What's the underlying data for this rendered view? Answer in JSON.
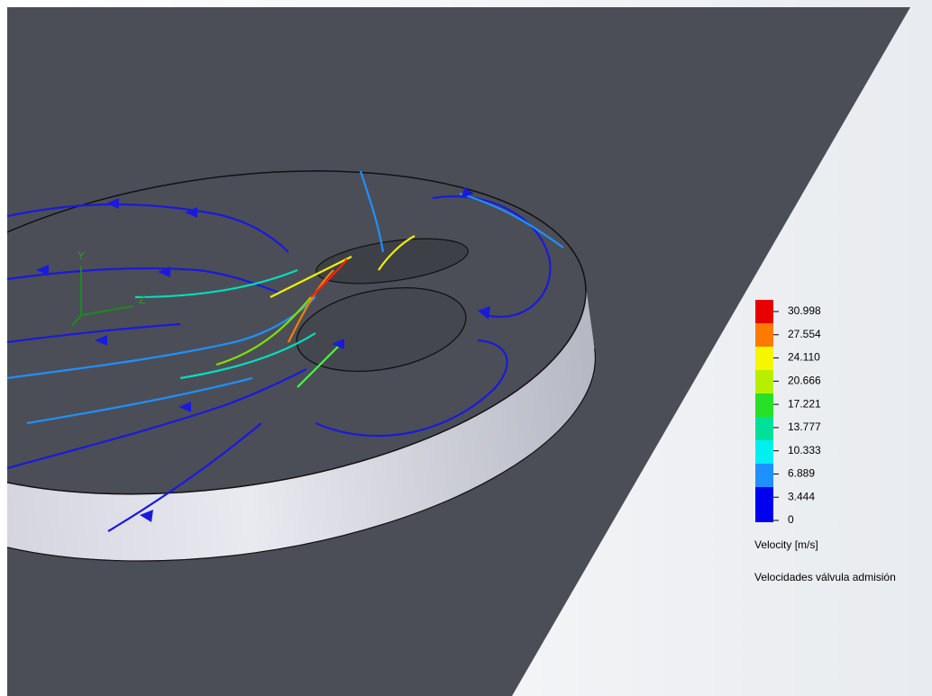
{
  "axis_triad": {
    "y": "Y",
    "z": "Z"
  },
  "legend": {
    "ticks": [
      "30.998",
      "27.554",
      "24.110",
      "20.666",
      "17.221",
      "13.777",
      "10.333",
      "6.889",
      "3.444",
      "0"
    ],
    "title": "Velocity [m/s]",
    "caption": "Velocidades válvula admisión"
  }
}
